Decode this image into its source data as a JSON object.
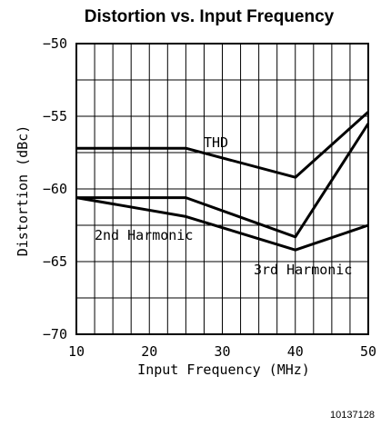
{
  "chart_data": {
    "type": "line",
    "title": "Distortion vs. Input Frequency",
    "xlabel": "Input Frequency (MHz)",
    "ylabel": "Distortion (dBc)",
    "xlim": [
      10,
      50
    ],
    "ylim": [
      -70,
      -50
    ],
    "x_ticks": [
      10,
      20,
      30,
      40,
      50
    ],
    "y_ticks": [
      -50,
      -55,
      -60,
      -65,
      -70
    ],
    "grid": true,
    "series": [
      {
        "name": "THD",
        "x": [
          10,
          25,
          40,
          50
        ],
        "y": [
          -57.2,
          -57.2,
          -59.2,
          -54.7
        ]
      },
      {
        "name": "2nd Harmonic",
        "x": [
          10,
          25,
          40,
          50
        ],
        "y": [
          -60.6,
          -60.6,
          -63.3,
          -55.5
        ]
      },
      {
        "name": "3rd Harmonic",
        "x": [
          10,
          25,
          40,
          50
        ],
        "y": [
          -60.6,
          -61.9,
          -64.2,
          -62.5
        ]
      }
    ],
    "figure_id": "10137128"
  }
}
